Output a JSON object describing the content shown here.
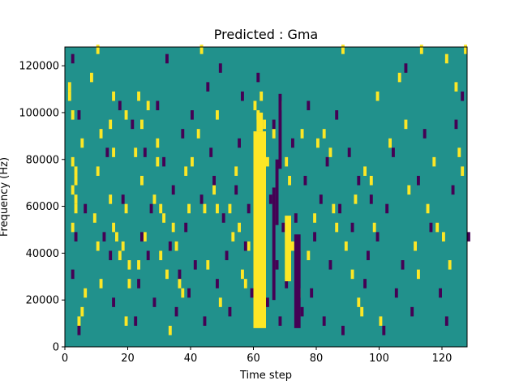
{
  "chart_data": {
    "type": "heatmap",
    "title": "Predicted : Gma",
    "xlabel": "Time step",
    "ylabel": "Frequency (Hz)",
    "xlim": [
      0,
      128
    ],
    "ylim": [
      0,
      128000
    ],
    "x_ticks": [
      0,
      20,
      40,
      60,
      80,
      100,
      120
    ],
    "y_ticks": [
      0,
      20000,
      40000,
      60000,
      80000,
      100000,
      120000
    ],
    "grid": false,
    "colors": {
      "background": "#21918c",
      "high": "#fde725",
      "low": "#440154"
    },
    "cell_width": 1,
    "cell_height": 4000,
    "cells": [
      [
        1,
        111000,
        1
      ],
      [
        1,
        107000,
        1
      ],
      [
        2,
        99000,
        1
      ],
      [
        5,
        87000,
        1
      ],
      [
        2,
        79000,
        1
      ],
      [
        3,
        75000,
        1
      ],
      [
        3,
        71000,
        1
      ],
      [
        2,
        67000,
        1
      ],
      [
        3,
        63000,
        1
      ],
      [
        3,
        59000,
        1
      ],
      [
        2,
        51000,
        1
      ],
      [
        6,
        23000,
        1
      ],
      [
        5,
        15000,
        1
      ],
      [
        4,
        11000,
        1
      ],
      [
        10,
        127000,
        1
      ],
      [
        8,
        115000,
        1
      ],
      [
        11,
        91000,
        1
      ],
      [
        10,
        75000,
        1
      ],
      [
        9,
        55000,
        1
      ],
      [
        10,
        43000,
        1
      ],
      [
        11,
        27000,
        1
      ],
      [
        15,
        107000,
        1
      ],
      [
        14,
        95000,
        1
      ],
      [
        15,
        83000,
        1
      ],
      [
        14,
        63000,
        1
      ],
      [
        15,
        51000,
        1
      ],
      [
        16,
        47000,
        1
      ],
      [
        17,
        39000,
        1
      ],
      [
        19,
        99000,
        1
      ],
      [
        19,
        59000,
        1
      ],
      [
        18,
        43000,
        1
      ],
      [
        20,
        35000,
        1
      ],
      [
        20,
        27000,
        1
      ],
      [
        19,
        11000,
        1
      ],
      [
        22,
        83000,
        1
      ],
      [
        23,
        107000,
        1
      ],
      [
        24,
        95000,
        1
      ],
      [
        24,
        71000,
        1
      ],
      [
        23,
        35000,
        1
      ],
      [
        25,
        47000,
        1
      ],
      [
        26,
        103000,
        1
      ],
      [
        28,
        63000,
        1
      ],
      [
        29,
        87000,
        1
      ],
      [
        29,
        79000,
        1
      ],
      [
        30,
        59000,
        1
      ],
      [
        31,
        55000,
        1
      ],
      [
        33,
        7000,
        1
      ],
      [
        30,
        39000,
        1
      ],
      [
        32,
        31000,
        1
      ],
      [
        34,
        51000,
        1
      ],
      [
        35,
        43000,
        1
      ],
      [
        36,
        27000,
        1
      ],
      [
        37,
        23000,
        1
      ],
      [
        38,
        75000,
        1
      ],
      [
        39,
        59000,
        1
      ],
      [
        40,
        79000,
        1
      ],
      [
        42,
        91000,
        1
      ],
      [
        43,
        127000,
        1
      ],
      [
        44,
        59000,
        1
      ],
      [
        45,
        35000,
        1
      ],
      [
        47,
        67000,
        1
      ],
      [
        48,
        99000,
        1
      ],
      [
        48,
        59000,
        1
      ],
      [
        49,
        19000,
        1
      ],
      [
        52,
        59000,
        1
      ],
      [
        53,
        47000,
        1
      ],
      [
        54,
        75000,
        1
      ],
      [
        55,
        51000,
        1
      ],
      [
        56,
        31000,
        1
      ],
      [
        57,
        27000,
        1
      ],
      [
        58,
        43000,
        1
      ],
      [
        60,
        103000,
        1
      ],
      [
        61,
        99000,
        1
      ],
      [
        62,
        107000,
        1
      ],
      [
        63,
        95000,
        1
      ],
      [
        64,
        79000,
        1
      ],
      [
        66,
        91000,
        1
      ],
      [
        68,
        103000,
        1
      ],
      [
        70,
        79000,
        1
      ],
      [
        71,
        71000,
        1
      ],
      [
        72,
        43000,
        1
      ],
      [
        74,
        23000,
        1
      ],
      [
        75,
        91000,
        1
      ],
      [
        77,
        39000,
        1
      ],
      [
        79,
        55000,
        1
      ],
      [
        80,
        87000,
        1
      ],
      [
        82,
        91000,
        1
      ],
      [
        84,
        83000,
        1
      ],
      [
        85,
        59000,
        1
      ],
      [
        86,
        51000,
        1
      ],
      [
        88,
        127000,
        1
      ],
      [
        89,
        43000,
        1
      ],
      [
        91,
        31000,
        1
      ],
      [
        93,
        19000,
        1
      ],
      [
        94,
        15000,
        1
      ],
      [
        92,
        63000,
        1
      ],
      [
        95,
        75000,
        1
      ],
      [
        97,
        71000,
        1
      ],
      [
        98,
        51000,
        1
      ],
      [
        99,
        107000,
        1
      ],
      [
        100,
        11000,
        1
      ],
      [
        103,
        87000,
        1
      ],
      [
        106,
        115000,
        1
      ],
      [
        108,
        95000,
        1
      ],
      [
        109,
        67000,
        1
      ],
      [
        111,
        43000,
        1
      ],
      [
        112,
        31000,
        1
      ],
      [
        113,
        127000,
        1
      ],
      [
        115,
        59000,
        1
      ],
      [
        117,
        79000,
        1
      ],
      [
        118,
        51000,
        1
      ],
      [
        120,
        47000,
        1
      ],
      [
        121,
        123000,
        1
      ],
      [
        122,
        35000,
        1
      ],
      [
        124,
        111000,
        1
      ],
      [
        125,
        83000,
        1
      ],
      [
        126,
        75000,
        1
      ],
      [
        127,
        127000,
        1
      ],
      [
        2,
        123000,
        -1
      ],
      [
        4,
        99000,
        -1
      ],
      [
        6,
        59000,
        -1
      ],
      [
        3,
        47000,
        -1
      ],
      [
        2,
        31000,
        -1
      ],
      [
        4,
        7000,
        -1
      ],
      [
        12,
        47000,
        -1
      ],
      [
        13,
        83000,
        -1
      ],
      [
        14,
        39000,
        -1
      ],
      [
        15,
        19000,
        -1
      ],
      [
        17,
        103000,
        -1
      ],
      [
        18,
        63000,
        -1
      ],
      [
        21,
        95000,
        -1
      ],
      [
        22,
        11000,
        -1
      ],
      [
        23,
        27000,
        -1
      ],
      [
        24,
        47000,
        -1
      ],
      [
        25,
        83000,
        -1
      ],
      [
        26,
        39000,
        -1
      ],
      [
        27,
        59000,
        -1
      ],
      [
        28,
        19000,
        -1
      ],
      [
        29,
        103000,
        -1
      ],
      [
        31,
        79000,
        -1
      ],
      [
        32,
        123000,
        -1
      ],
      [
        33,
        43000,
        -1
      ],
      [
        34,
        67000,
        -1
      ],
      [
        35,
        15000,
        -1
      ],
      [
        36,
        31000,
        -1
      ],
      [
        37,
        91000,
        -1
      ],
      [
        38,
        51000,
        -1
      ],
      [
        39,
        23000,
        -1
      ],
      [
        40,
        99000,
        -1
      ],
      [
        41,
        35000,
        -1
      ],
      [
        43,
        63000,
        -1
      ],
      [
        44,
        11000,
        -1
      ],
      [
        45,
        111000,
        -1
      ],
      [
        46,
        83000,
        -1
      ],
      [
        47,
        71000,
        -1
      ],
      [
        48,
        27000,
        -1
      ],
      [
        49,
        119000,
        -1
      ],
      [
        50,
        55000,
        -1
      ],
      [
        51,
        39000,
        -1
      ],
      [
        52,
        15000,
        -1
      ],
      [
        54,
        67000,
        -1
      ],
      [
        55,
        87000,
        -1
      ],
      [
        56,
        107000,
        -1
      ],
      [
        57,
        43000,
        -1
      ],
      [
        58,
        59000,
        -1
      ],
      [
        59,
        23000,
        -1
      ],
      [
        61,
        115000,
        -1
      ],
      [
        62,
        47000,
        -1
      ],
      [
        64,
        19000,
        -1
      ],
      [
        65,
        63000,
        -1
      ],
      [
        66,
        95000,
        -1
      ],
      [
        67,
        35000,
        -1
      ],
      [
        68,
        11000,
        -1
      ],
      [
        69,
        51000,
        -1
      ],
      [
        70,
        27000,
        -1
      ],
      [
        72,
        87000,
        -1
      ],
      [
        73,
        55000,
        -1
      ],
      [
        74,
        39000,
        -1
      ],
      [
        75,
        15000,
        -1
      ],
      [
        76,
        71000,
        -1
      ],
      [
        77,
        103000,
        -1
      ],
      [
        78,
        23000,
        -1
      ],
      [
        79,
        47000,
        -1
      ],
      [
        81,
        63000,
        -1
      ],
      [
        82,
        11000,
        -1
      ],
      [
        83,
        79000,
        -1
      ],
      [
        84,
        35000,
        -1
      ],
      [
        86,
        99000,
        -1
      ],
      [
        87,
        59000,
        -1
      ],
      [
        88,
        7000,
        -1
      ],
      [
        90,
        83000,
        -1
      ],
      [
        91,
        51000,
        -1
      ],
      [
        93,
        71000,
        -1
      ],
      [
        95,
        27000,
        -1
      ],
      [
        96,
        39000,
        -1
      ],
      [
        97,
        63000,
        -1
      ],
      [
        99,
        47000,
        -1
      ],
      [
        101,
        7000,
        -1
      ],
      [
        102,
        59000,
        -1
      ],
      [
        104,
        83000,
        -1
      ],
      [
        105,
        23000,
        -1
      ],
      [
        107,
        35000,
        -1
      ],
      [
        108,
        119000,
        -1
      ],
      [
        110,
        15000,
        -1
      ],
      [
        112,
        71000,
        -1
      ],
      [
        114,
        91000,
        -1
      ],
      [
        116,
        51000,
        -1
      ],
      [
        119,
        23000,
        -1
      ],
      [
        121,
        11000,
        -1
      ],
      [
        123,
        67000,
        -1
      ],
      [
        124,
        95000,
        -1
      ],
      [
        126,
        107000,
        -1
      ],
      [
        128,
        47000,
        -1
      ]
    ],
    "bands": [
      {
        "x": [
          60,
          64
        ],
        "y": [
          8000,
          92000
        ],
        "value": 1
      },
      {
        "x": [
          61,
          63
        ],
        "y": [
          92000,
          100000
        ],
        "value": 1
      },
      {
        "x": [
          70,
          72
        ],
        "y": [
          28000,
          56000
        ],
        "value": 1
      },
      {
        "x": [
          66,
          67
        ],
        "y": [
          20000,
          68000
        ],
        "value": -1
      },
      {
        "x": [
          67,
          68
        ],
        "y": [
          52000,
          80000
        ],
        "value": -1
      },
      {
        "x": [
          73,
          75
        ],
        "y": [
          8000,
          48000
        ],
        "value": -1
      },
      {
        "x": [
          68,
          69
        ],
        "y": [
          76000,
          108000
        ],
        "value": -1
      }
    ]
  }
}
